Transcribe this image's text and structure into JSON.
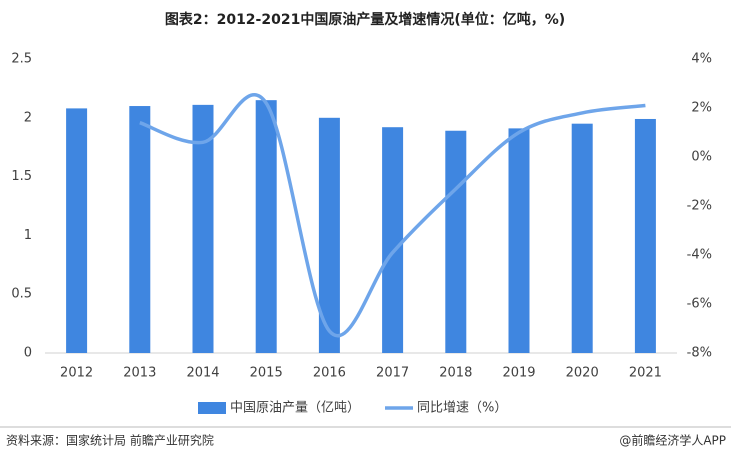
{
  "chart_data": {
    "type": "bar-line",
    "title": "图表2：2012-2021中国原油产量及增速情况(单位：亿吨，%)",
    "categories": [
      "2012",
      "2013",
      "2014",
      "2015",
      "2016",
      "2017",
      "2018",
      "2019",
      "2020",
      "2021"
    ],
    "series": [
      {
        "name": "中国原油产量（亿吨）",
        "color": "#3f86e0",
        "type": "bar",
        "values": [
          2.08,
          2.1,
          2.11,
          2.15,
          2.0,
          1.92,
          1.89,
          1.91,
          1.95,
          1.99
        ]
      },
      {
        "name": "同比增速（%）",
        "color": "#6ea5ea",
        "type": "line",
        "axis": "y2",
        "values": [
          null,
          1.4,
          0.6,
          2.2,
          -7.1,
          -3.9,
          -1.3,
          1.0,
          1.8,
          2.1
        ]
      }
    ],
    "ylim": [
      0,
      2.5
    ],
    "yticks": [
      0,
      0.5,
      1,
      1.5,
      2,
      2.5
    ],
    "y2lim": [
      -8,
      4
    ],
    "y2ticks": [
      {
        "value": -8,
        "label": "-8%"
      },
      {
        "value": -6,
        "label": "-6%"
      },
      {
        "value": -4,
        "label": "-4%"
      },
      {
        "value": -2,
        "label": "-2%"
      },
      {
        "value": 0,
        "label": "0%"
      },
      {
        "value": 2,
        "label": "2%"
      },
      {
        "value": 4,
        "label": "4%"
      }
    ],
    "source": "资料来源：国家统计局 前瞻产业研究院",
    "credit": "@前瞻经济学人APP"
  }
}
